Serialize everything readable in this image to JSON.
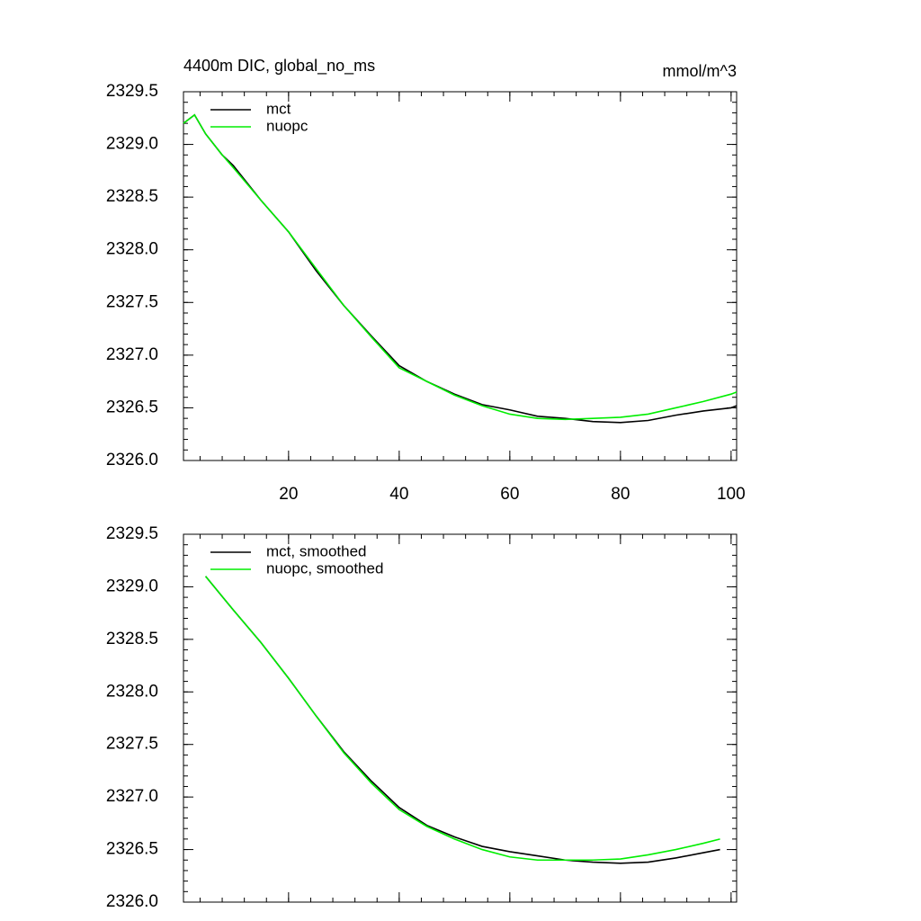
{
  "chart_data": [
    {
      "type": "line",
      "title": "4400m DIC, global_no_ms",
      "units": "mmol/m^3",
      "xlim": [
        1,
        101
      ],
      "xticks": [
        20,
        40,
        60,
        80,
        100
      ],
      "ylim": [
        2326,
        2329.5
      ],
      "yticks": [
        {
          "value": 2326,
          "label": "2326.0"
        },
        2326.5,
        {
          "value": 2327,
          "label": "2327.0"
        },
        2327.5,
        {
          "value": 2328,
          "label": "2328.0"
        },
        2328.5,
        {
          "value": 2329,
          "label": "2329.0"
        },
        2329.5
      ],
      "x": [
        1,
        3,
        5,
        8,
        10,
        15,
        20,
        25,
        30,
        35,
        40,
        45,
        50,
        55,
        60,
        65,
        70,
        75,
        80,
        85,
        90,
        95,
        100,
        101
      ],
      "series": [
        {
          "name": "mct",
          "color": "#000000",
          "values": [
            2329.2,
            2329.28,
            2329.1,
            2328.9,
            2328.8,
            2328.47,
            2328.17,
            2327.8,
            2327.47,
            2327.18,
            2326.9,
            2326.75,
            2326.63,
            2326.53,
            2326.48,
            2326.42,
            2326.4,
            2326.37,
            2326.36,
            2326.38,
            2326.43,
            2326.47,
            2326.5,
            2326.52
          ]
        },
        {
          "name": "nuopc",
          "color": "#00ee00",
          "values": [
            2329.2,
            2329.28,
            2329.1,
            2328.9,
            2328.78,
            2328.47,
            2328.17,
            2327.82,
            2327.47,
            2327.17,
            2326.88,
            2326.75,
            2326.62,
            2326.52,
            2326.44,
            2326.4,
            2326.39,
            2326.4,
            2326.41,
            2326.44,
            2326.5,
            2326.56,
            2326.63,
            2326.65
          ]
        }
      ]
    },
    {
      "type": "line",
      "xlim": [
        1,
        101
      ],
      "xticks": [
        20,
        40,
        60,
        80,
        100
      ],
      "ylim": [
        2326,
        2329.5
      ],
      "yticks": [
        {
          "value": 2326,
          "label": "2326.0"
        },
        2326.5,
        {
          "value": 2327,
          "label": "2327.0"
        },
        2327.5,
        {
          "value": 2328,
          "label": "2328.0"
        },
        2328.5,
        {
          "value": 2329,
          "label": "2329.0"
        },
        2329.5
      ],
      "x": [
        5,
        10,
        15,
        20,
        25,
        30,
        35,
        40,
        45,
        50,
        55,
        60,
        65,
        70,
        75,
        80,
        85,
        90,
        95,
        98
      ],
      "series": [
        {
          "name": "mct, smoothed",
          "color": "#000000",
          "values": [
            2329.1,
            2328.78,
            2328.47,
            2328.13,
            2327.77,
            2327.43,
            2327.15,
            2326.9,
            2326.73,
            2326.62,
            2326.53,
            2326.48,
            2326.44,
            2326.4,
            2326.38,
            2326.37,
            2326.38,
            2326.42,
            2326.47,
            2326.5
          ]
        },
        {
          "name": "nuopc, smoothed",
          "color": "#00ee00",
          "values": [
            2329.1,
            2328.78,
            2328.47,
            2328.13,
            2327.77,
            2327.42,
            2327.13,
            2326.88,
            2326.72,
            2326.6,
            2326.5,
            2326.43,
            2326.4,
            2326.4,
            2326.4,
            2326.41,
            2326.45,
            2326.5,
            2326.56,
            2326.6
          ]
        }
      ]
    }
  ]
}
